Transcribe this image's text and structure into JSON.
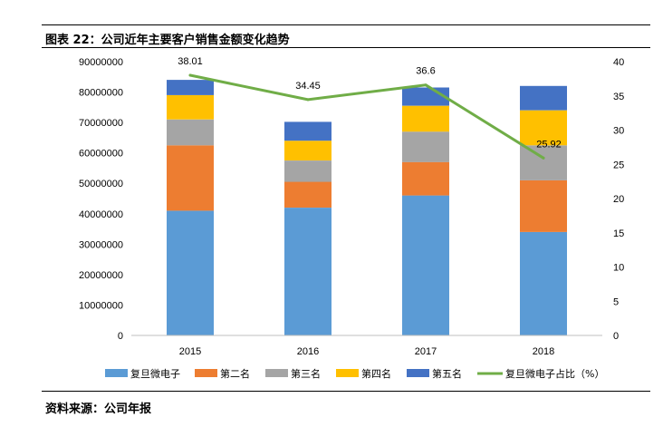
{
  "caption": {
    "title": "图表 22：公司近年主要客户销售金额变化趋势",
    "source": "资料来源：公司年报"
  },
  "chart_data": {
    "type": "bar",
    "stacked": true,
    "categories": [
      "2015",
      "2016",
      "2017",
      "2018"
    ],
    "series": [
      {
        "name": "复旦微电子",
        "color": "#5b9bd5",
        "values": [
          41000000,
          42000000,
          46000000,
          34000000
        ]
      },
      {
        "name": "第二名",
        "color": "#ed7d31",
        "values": [
          21500000,
          8500000,
          11000000,
          17000000
        ]
      },
      {
        "name": "第三名",
        "color": "#a5a5a5",
        "values": [
          8500000,
          7000000,
          10000000,
          11500000
        ]
      },
      {
        "name": "第四名",
        "color": "#ffc000",
        "values": [
          8000000,
          6500000,
          8500000,
          11500000
        ]
      },
      {
        "name": "第五名",
        "color": "#4472c4",
        "values": [
          5000000,
          6200000,
          6000000,
          8000000
        ]
      }
    ],
    "line_series": {
      "name": "复旦微电子占比（%）",
      "color": "#70ad47",
      "axis": "right",
      "values": [
        38.01,
        34.45,
        36.6,
        25.92
      ],
      "labels": [
        "38.01",
        "34.45",
        "36.6",
        "25.92"
      ]
    },
    "y_left": {
      "min": 0,
      "max": 90000000,
      "ticks": [
        "0",
        "10000000",
        "20000000",
        "30000000",
        "40000000",
        "50000000",
        "60000000",
        "70000000",
        "80000000",
        "90000000"
      ]
    },
    "y_right": {
      "min": 0,
      "max": 40,
      "ticks": [
        "0",
        "5",
        "10",
        "15",
        "20",
        "25",
        "30",
        "35",
        "40"
      ]
    },
    "grid": false,
    "legend_position": "bottom"
  }
}
